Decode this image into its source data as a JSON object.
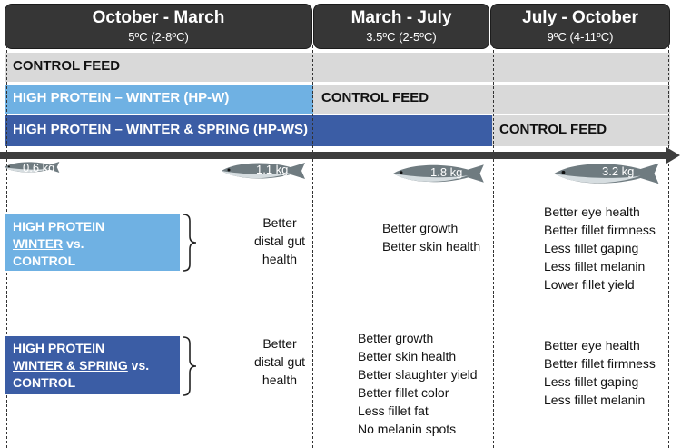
{
  "seasons": [
    {
      "title": "October - March",
      "temp": "5ºC (2-8ºC)"
    },
    {
      "title": "March - July",
      "temp": "3.5ºC (2-5ºC)"
    },
    {
      "title": "July - October",
      "temp": "9ºC (4-11ºC)"
    }
  ],
  "feeds": {
    "control_row": "CONTROL FEED",
    "hpw": "HIGH PROTEIN – WINTER (HP-W)",
    "hpw_control": "CONTROL FEED",
    "hpws": "HIGH PROTEIN – WINTER & SPRING (HP-WS)",
    "hpws_control": "CONTROL FEED"
  },
  "weights": [
    "0.6 kg",
    "1.1 kg",
    "1.8 kg",
    "3.2 kg"
  ],
  "comparisons": [
    {
      "line1": "HIGH PROTEIN",
      "line2": "WINTER",
      "line2_suffix": " vs.",
      "line3": "CONTROL",
      "col1": [
        "Better",
        "distal gut",
        "health"
      ],
      "col2": [
        "Better growth",
        "Better skin health"
      ],
      "col3": [
        "Better eye health",
        "Better fillet firmness",
        "Less fillet gaping",
        "Less fillet melanin",
        "Lower fillet yield"
      ]
    },
    {
      "line1": "HIGH PROTEIN",
      "line2": "WINTER & SPRING",
      "line2_suffix": " vs.",
      "line3": "CONTROL",
      "col1": [
        "Better",
        "distal gut",
        "health"
      ],
      "col2": [
        "Better growth",
        "Better skin health",
        "Better slaughter yield",
        "Better fillet color",
        "Less fillet fat",
        "No melanin spots"
      ],
      "col3": [
        "Better eye health",
        "Better fillet firmness",
        "Less fillet gaping",
        "Less fillet melanin"
      ]
    }
  ],
  "colors": {
    "season_header": "#363636",
    "control_feed": "#d9d9d9",
    "hp_winter": "#6fb1e3",
    "hp_winter_spring": "#3b5da5",
    "timeline": "#3d3d3d"
  }
}
